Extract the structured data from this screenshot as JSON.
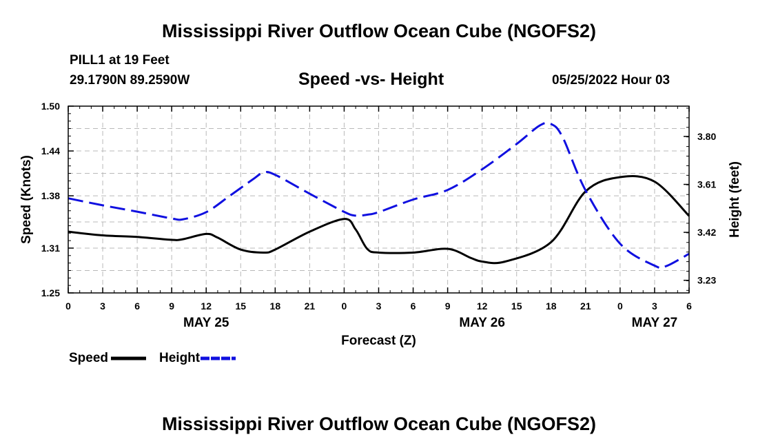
{
  "page": {
    "main_title": "Mississippi River Outflow Ocean Cube (NGOFS2)",
    "footer_title": "Mississippi River Outflow Ocean Cube (NGOFS2)",
    "station": "PILL1 at 19 Feet",
    "coords": "29.1790N  89.2590W",
    "subtitle": "Speed -vs- Height",
    "run_time": "05/25/2022 Hour 03"
  },
  "chart_data": {
    "type": "line",
    "title": "Speed -vs- Height",
    "xlabel": "Forecast (Z)",
    "ylabel": "Speed (Knots)",
    "y2label": "Height (feet)",
    "xlim": [
      0,
      54
    ],
    "ylim": [
      1.25,
      1.5
    ],
    "y2lim": [
      3.18,
      3.92
    ],
    "x_ticks": [
      0,
      3,
      6,
      9,
      12,
      15,
      18,
      21,
      24,
      27,
      30,
      33,
      36,
      39,
      42,
      45,
      48,
      51,
      54
    ],
    "x_tick_labels": [
      "0",
      "3",
      "6",
      "9",
      "12",
      "15",
      "18",
      "21",
      "0",
      "3",
      "6",
      "9",
      "12",
      "15",
      "18",
      "21",
      "0",
      "3",
      "6"
    ],
    "date_labels": [
      {
        "x": 12,
        "label": "MAY 25"
      },
      {
        "x": 36,
        "label": "MAY 26"
      },
      {
        "x": 51,
        "label": "MAY 27"
      }
    ],
    "y_ticks": [
      1.25,
      1.31,
      1.38,
      1.44,
      1.5
    ],
    "y_tick_labels": [
      "1.25",
      "1.31",
      "1.38",
      "1.44",
      "1.50"
    ],
    "y2_ticks": [
      3.23,
      3.42,
      3.61,
      3.8
    ],
    "y2_tick_labels": [
      "3.23",
      "3.42",
      "3.61",
      "3.80"
    ],
    "grid": true,
    "legend_position": "bottom-left",
    "series": [
      {
        "name": "Speed",
        "axis": "left",
        "color": "#000000",
        "style": "solid",
        "x": [
          0,
          3,
          6,
          9,
          10,
          12,
          13,
          15,
          17,
          18,
          21,
          24,
          25,
          26,
          27,
          30,
          33,
          35,
          36,
          38,
          42,
          45,
          48,
          51,
          54
        ],
        "values": [
          1.332,
          1.327,
          1.325,
          1.321,
          1.322,
          1.329,
          1.324,
          1.308,
          1.304,
          1.308,
          1.332,
          1.349,
          1.335,
          1.309,
          1.304,
          1.304,
          1.309,
          1.297,
          1.292,
          1.292,
          1.318,
          1.386,
          1.405,
          1.399,
          1.353
        ]
      },
      {
        "name": "Height",
        "axis": "right",
        "color": "#1010e0",
        "style": "dashed",
        "x": [
          0,
          3,
          6,
          9,
          10,
          12,
          14,
          16,
          17,
          18,
          21,
          24,
          25,
          26,
          27,
          30,
          33,
          36,
          39,
          41,
          42,
          43,
          45,
          48,
          51,
          52,
          54
        ],
        "values": [
          3.555,
          3.527,
          3.502,
          3.475,
          3.472,
          3.5,
          3.563,
          3.628,
          3.657,
          3.648,
          3.573,
          3.501,
          3.486,
          3.49,
          3.5,
          3.55,
          3.588,
          3.67,
          3.77,
          3.843,
          3.849,
          3.797,
          3.586,
          3.375,
          3.288,
          3.286,
          3.335
        ]
      }
    ],
    "legend": [
      {
        "name": "Speed",
        "color": "#000000",
        "style": "solid"
      },
      {
        "name": "Height",
        "color": "#1010e0",
        "style": "dashed"
      }
    ]
  }
}
